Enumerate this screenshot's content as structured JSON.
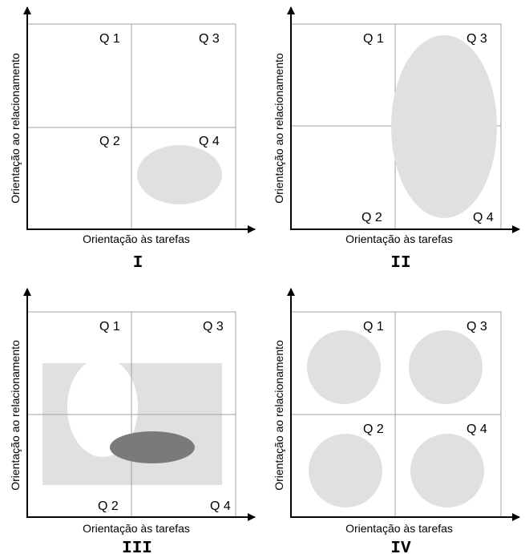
{
  "diagrams": [
    {
      "numeral": "I",
      "x_label": "Orientação às tarefas",
      "y_label": "Orientação ao relacionamento",
      "quadrants": {
        "q1": "Q 1",
        "q2": "Q 2",
        "q3": "Q 3",
        "q4": "Q 4"
      }
    },
    {
      "numeral": "II",
      "x_label": "Orientação às tarefas",
      "y_label": "Orientação ao relacionamento",
      "quadrants": {
        "q1": "Q 1",
        "q2": "Q 2",
        "q3": "Q 3",
        "q4": "Q 4"
      }
    },
    {
      "numeral": "III",
      "x_label": "Orientação às tarefas",
      "y_label": "Orientação ao relacionamento",
      "quadrants": {
        "q1": "Q 1",
        "q2": "Q 2",
        "q3": "Q 3",
        "q4": "Q 4"
      }
    },
    {
      "numeral": "IV",
      "x_label": "Orientação às tarefas",
      "y_label": "Orientação ao relacionamento",
      "quadrants": {
        "q1": "Q 1",
        "q2": "Q 2",
        "q3": "Q 3",
        "q4": "Q 4"
      }
    }
  ],
  "colors": {
    "light_shape": "#e0e0e0",
    "dark_shape": "#7a7a7a",
    "grid_line": "#a0a0a0",
    "axis": "#000000"
  }
}
